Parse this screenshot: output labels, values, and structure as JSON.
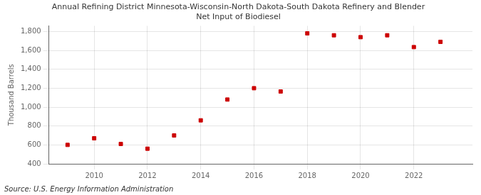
{
  "chart_data": {
    "type": "scatter",
    "title": "Annual Refining District Minnesota-Wisconsin-North Dakota-South Dakota Refinery and Blender\nNet Input of Biodiesel",
    "ylabel": "Thousand Barrels",
    "annotations": [
      "Source: U.S. Energy Information Administration"
    ],
    "x": [
      2009,
      2010,
      2011,
      2012,
      2013,
      2014,
      2015,
      2016,
      2017,
      2018,
      2019,
      2020,
      2021,
      2022,
      2023
    ],
    "values": [
      600,
      670,
      610,
      560,
      700,
      860,
      1080,
      1200,
      1165,
      1780,
      1760,
      1740,
      1760,
      1635,
      1690
    ],
    "color": "#cc0000",
    "marker": "square",
    "xlim": [
      2008.3,
      2024.2
    ],
    "xticks": [
      2010,
      2012,
      2014,
      2016,
      2018,
      2020,
      2022
    ],
    "ylim": [
      400,
      1860
    ],
    "yticks": [
      400,
      600,
      800,
      {
        "value": 1000,
        "label": "1,000"
      },
      {
        "value": 1200,
        "label": "1,200"
      },
      {
        "value": 1400,
        "label": "1,400"
      },
      {
        "value": 1600,
        "label": "1,600"
      },
      {
        "value": 1800,
        "label": "1,800"
      }
    ],
    "grid": true
  }
}
